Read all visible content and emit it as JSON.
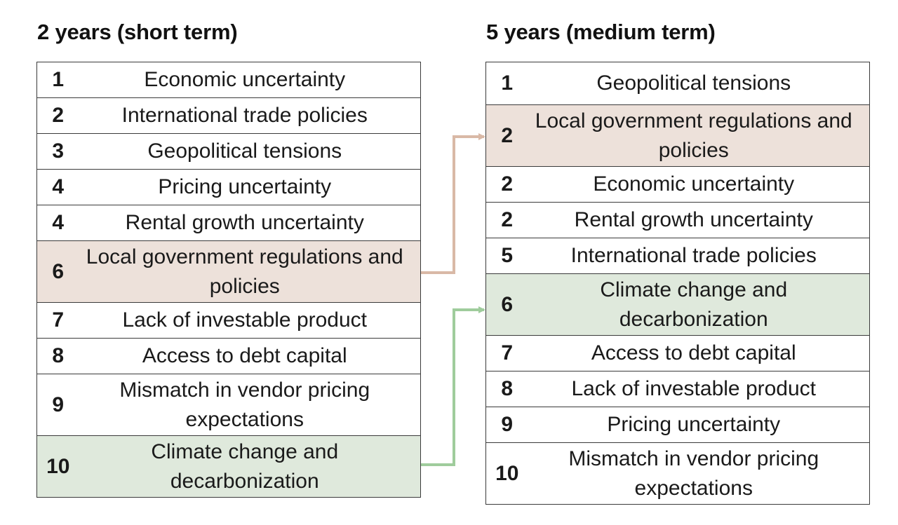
{
  "left_panel": {
    "title": "2 years (short term)",
    "rows": [
      {
        "rank": "1",
        "label": "Economic uncertainty"
      },
      {
        "rank": "2",
        "label": "International trade policies"
      },
      {
        "rank": "3",
        "label": "Geopolitical tensions"
      },
      {
        "rank": "4",
        "label": "Pricing uncertainty"
      },
      {
        "rank": "4",
        "label": "Rental growth uncertainty"
      },
      {
        "rank": "6",
        "label": "Local government regulations and policies"
      },
      {
        "rank": "7",
        "label": "Lack of investable product"
      },
      {
        "rank": "8",
        "label": "Access to debt capital"
      },
      {
        "rank": "9",
        "label": "Mismatch in vendor pricing expectations"
      },
      {
        "rank": "10",
        "label": "Climate change and decarbonization"
      }
    ]
  },
  "right_panel": {
    "title": "5 years (medium term)",
    "rows": [
      {
        "rank": "1",
        "label": "Geopolitical tensions"
      },
      {
        "rank": "2",
        "label": "Local government regulations and policies"
      },
      {
        "rank": "2",
        "label": "Economic uncertainty"
      },
      {
        "rank": "2",
        "label": "Rental growth uncertainty"
      },
      {
        "rank": "5",
        "label": "International trade policies"
      },
      {
        "rank": "6",
        "label": "Climate change and decarbonization"
      },
      {
        "rank": "7",
        "label": "Access to debt capital"
      },
      {
        "rank": "8",
        "label": "Lack of investable product"
      },
      {
        "rank": "9",
        "label": "Pricing uncertainty"
      },
      {
        "rank": "10",
        "label": "Mismatch in vendor pricing expectations"
      }
    ]
  },
  "colors": {
    "regulations_highlight": "#ede1da",
    "climate_highlight": "#dfe9dc",
    "regulations_arrow": "#d9b9a6",
    "climate_arrow": "#9fcc9c"
  }
}
